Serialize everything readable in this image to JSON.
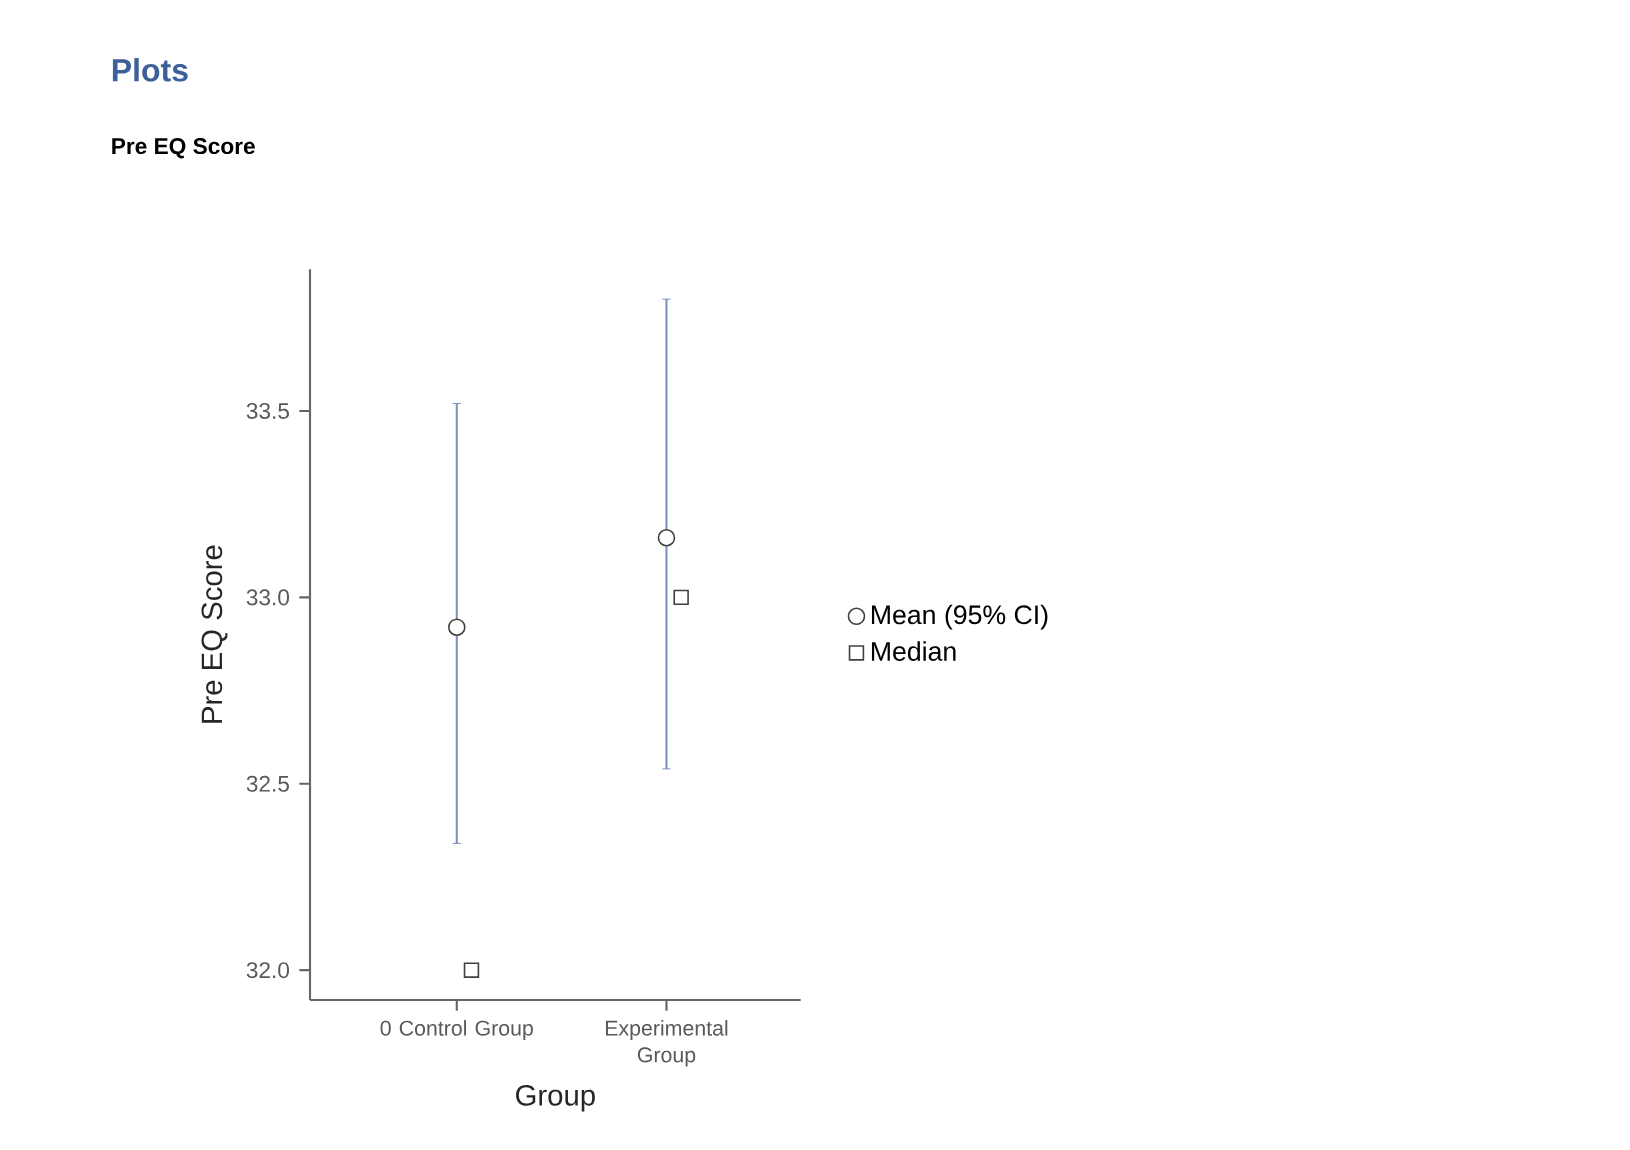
{
  "chart_data": {
    "type": "scatter",
    "title": "Plots",
    "subtitle": "Pre EQ Score",
    "xlabel": "Group",
    "ylabel": "Pre EQ Score",
    "categories": [
      "0 Control Group",
      "Experimental Group"
    ],
    "series": [
      {
        "name": "Mean (95% CI)",
        "marker": "circle",
        "color": "#404040",
        "values": [
          32.92,
          33.16
        ],
        "errors": [
          [
            32.34,
            33.52
          ],
          [
            32.54,
            33.8
          ]
        ]
      },
      {
        "name": "Median",
        "marker": "square",
        "color": "#404040",
        "values": [
          32.0,
          33.0
        ]
      }
    ],
    "ylim": [
      31.92,
      33.88
    ],
    "yticks": [
      {
        "value": 32,
        "label": "32.0"
      },
      33.5,
      {
        "value": 33,
        "label": "33.0"
      },
      32.5
    ],
    "legend": "right",
    "grid": false
  }
}
